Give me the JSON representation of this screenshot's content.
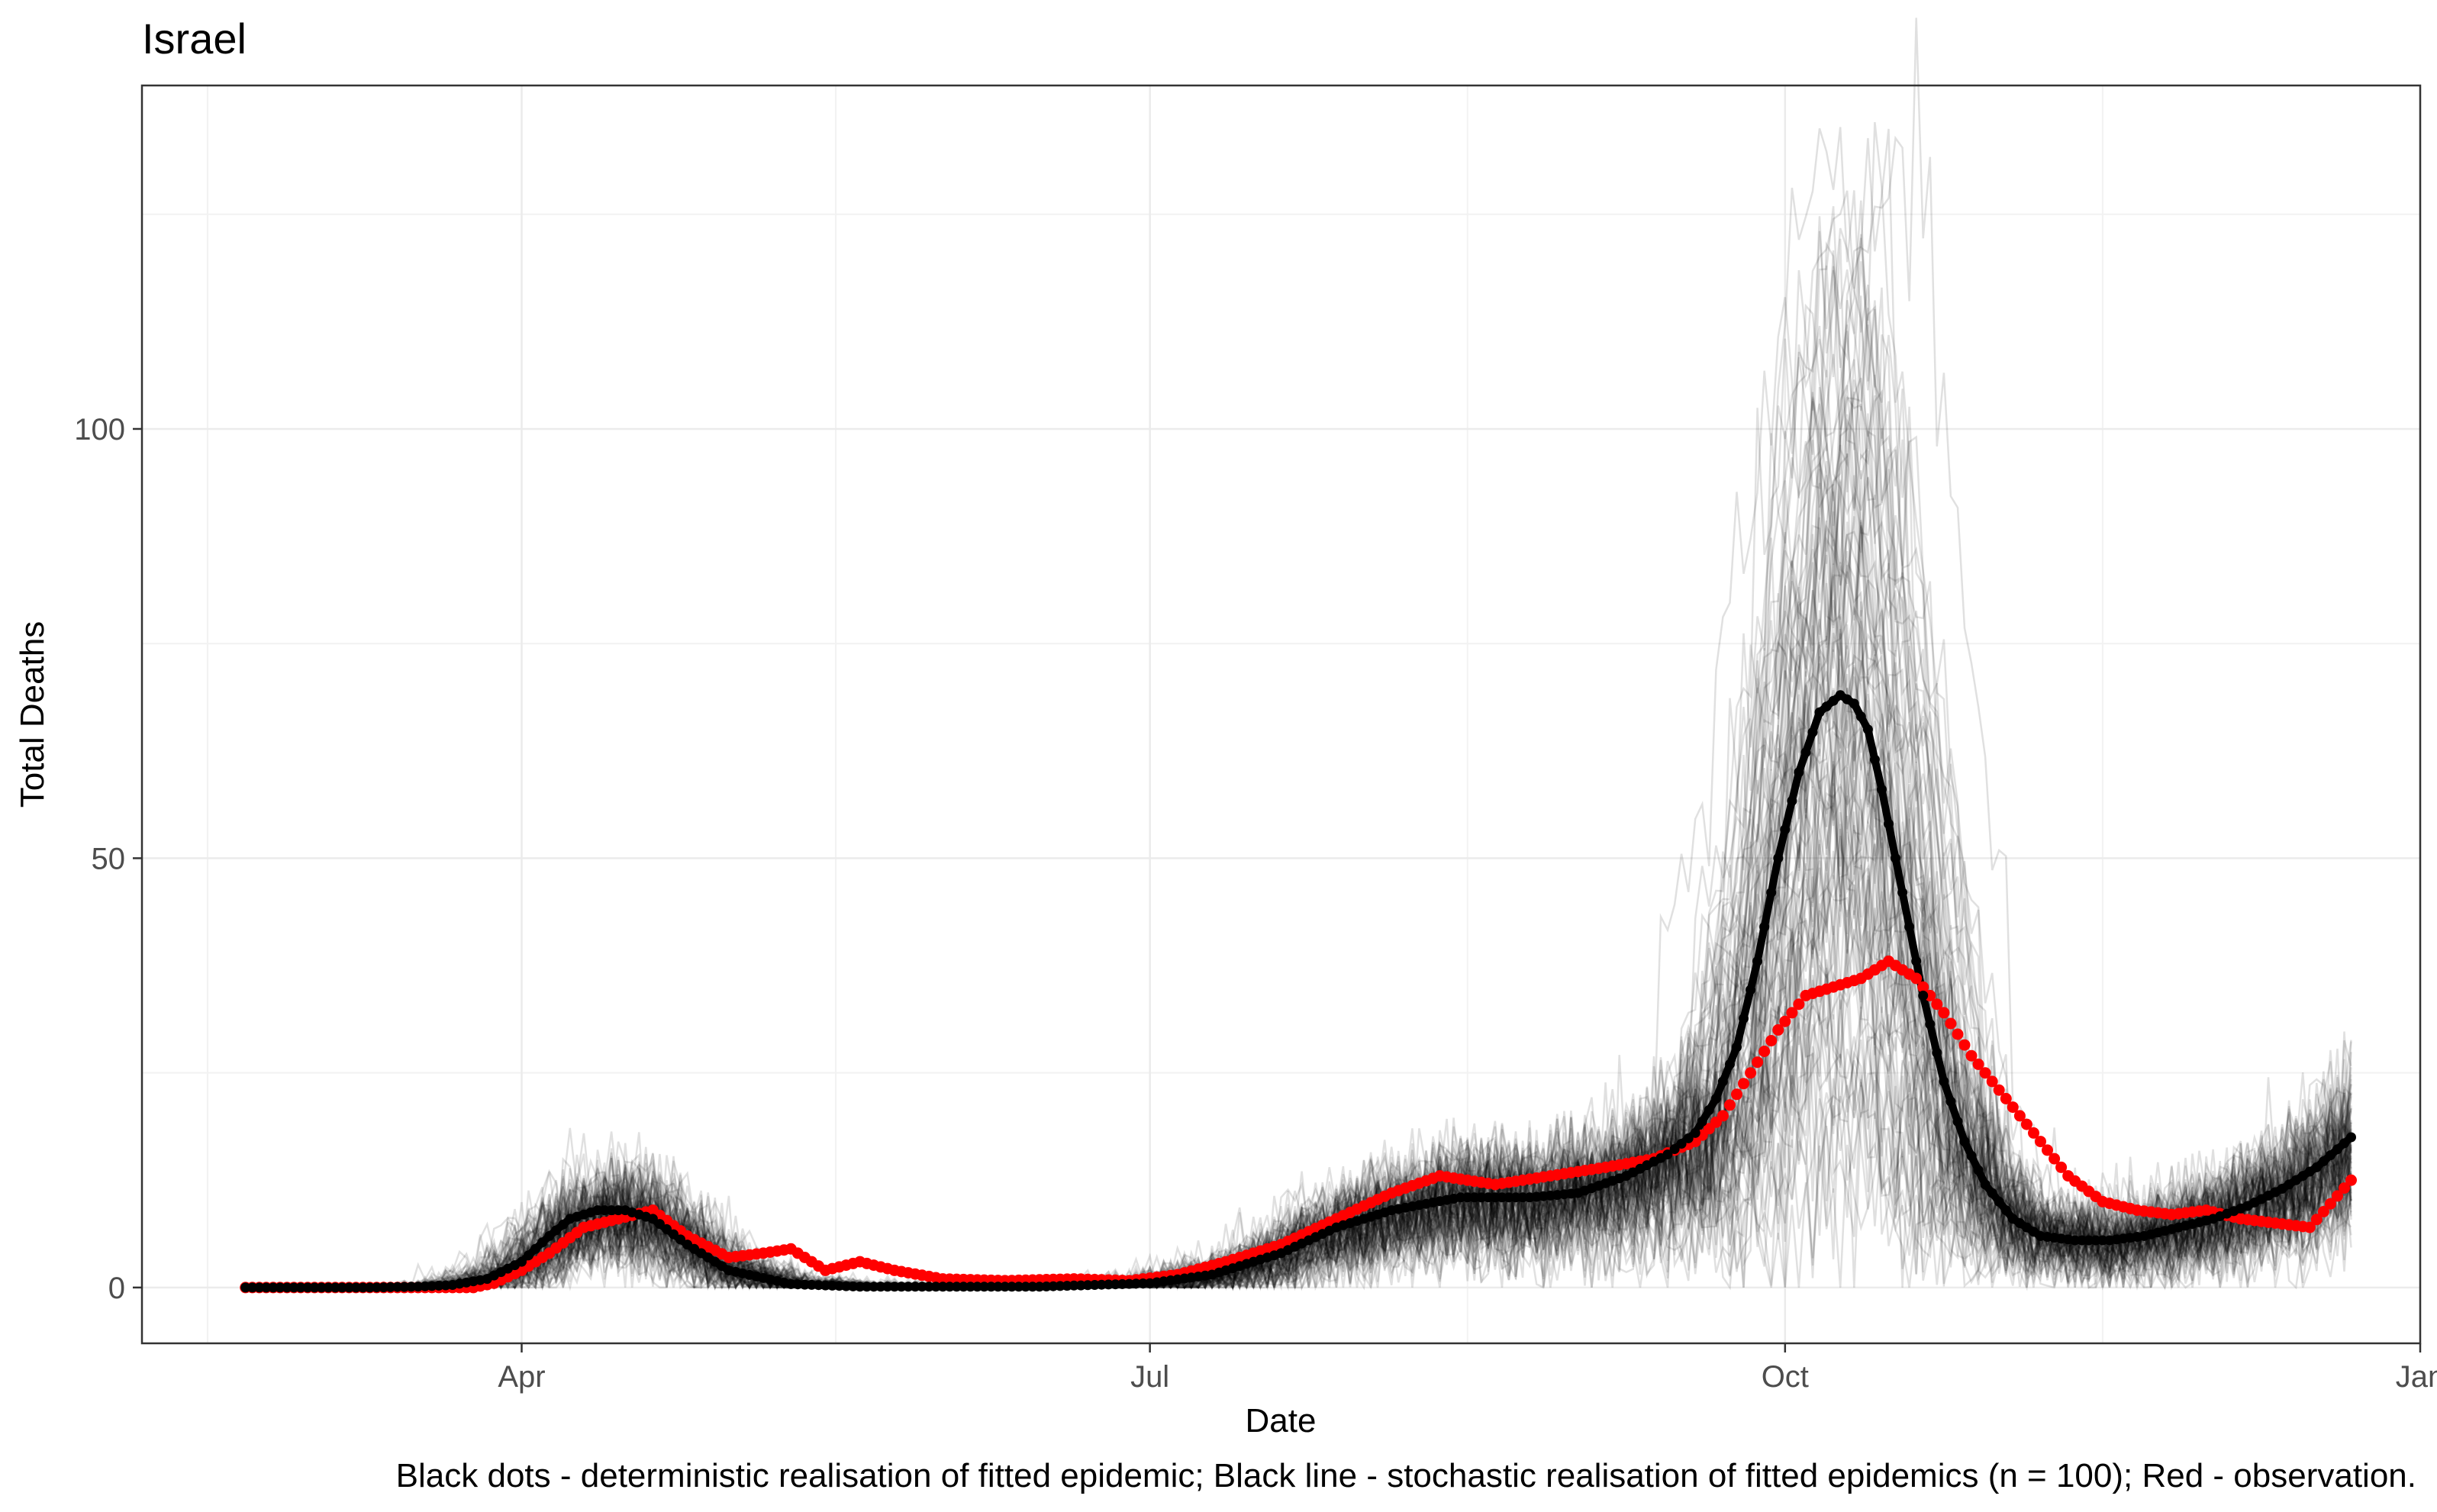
{
  "chart_data": {
    "type": "line",
    "title": "Israel",
    "xlabel": "Date",
    "ylabel": "Total Deaths",
    "caption": "Black dots - deterministic realisation of fitted epidemic; Black line - stochastic realisation of fitted epidemics (n = 100); Red - observation.",
    "x_ticks": [
      "Apr",
      "Jul",
      "Oct",
      "Jan"
    ],
    "x_tick_dates": [
      "2020-04-01",
      "2020-07-01",
      "2020-10-01",
      "2021-01-01"
    ],
    "xlim": [
      "2020-02-06",
      "2021-01-01"
    ],
    "y_ticks": [
      0,
      50,
      100
    ],
    "ylim": [
      -6.5,
      140
    ],
    "grid": true,
    "legend": "none",
    "colors": {
      "deterministic": "#000000",
      "stochastic_mean": "#000000",
      "stochastic_runs": "#000000",
      "observation": "#ff0000"
    },
    "series": [
      {
        "name": "Black dots - deterministic realisation of fitted epidemic",
        "style": "points",
        "dates": [
          "2020-02-21",
          "2020-03-01",
          "2020-03-10",
          "2020-03-17",
          "2020-03-22",
          "2020-03-27",
          "2020-04-01",
          "2020-04-05",
          "2020-04-08",
          "2020-04-12",
          "2020-04-16",
          "2020-04-20",
          "2020-04-25",
          "2020-05-01",
          "2020-05-10",
          "2020-05-20",
          "2020-06-01",
          "2020-06-15",
          "2020-07-01",
          "2020-07-10",
          "2020-07-20",
          "2020-07-28",
          "2020-08-05",
          "2020-08-15",
          "2020-08-25",
          "2020-09-01",
          "2020-09-08",
          "2020-09-14",
          "2020-09-18",
          "2020-09-21",
          "2020-09-24",
          "2020-09-27",
          "2020-09-30",
          "2020-10-03",
          "2020-10-06",
          "2020-10-09",
          "2020-10-11",
          "2020-10-13",
          "2020-10-15",
          "2020-10-18",
          "2020-10-21",
          "2020-10-24",
          "2020-10-27",
          "2020-10-30",
          "2020-11-03",
          "2020-11-07",
          "2020-11-12",
          "2020-11-17",
          "2020-11-22",
          "2020-11-27",
          "2020-12-02",
          "2020-12-07",
          "2020-12-12",
          "2020-12-17",
          "2020-12-22"
        ],
        "values": [
          0,
          0,
          0,
          0.1,
          0.3,
          1,
          3,
          6,
          8,
          9,
          9,
          8,
          5,
          2,
          0.4,
          0.1,
          0.1,
          0.1,
          0.5,
          1.5,
          4,
          7,
          9,
          10.5,
          10.5,
          11,
          13,
          15.5,
          18,
          22,
          28,
          38,
          50,
          60,
          67,
          69,
          68,
          65,
          58,
          46,
          34,
          24,
          17,
          12,
          8,
          6,
          5.5,
          5.5,
          6,
          7,
          8,
          9.5,
          11.5,
          14,
          17.5
        ]
      },
      {
        "name": "Black line - stochastic realisation of fitted epidemics (n = 100)",
        "style": "line",
        "dates": [
          "2020-02-21",
          "2020-03-01",
          "2020-03-10",
          "2020-03-17",
          "2020-03-22",
          "2020-03-27",
          "2020-04-01",
          "2020-04-05",
          "2020-04-08",
          "2020-04-12",
          "2020-04-16",
          "2020-04-20",
          "2020-04-25",
          "2020-05-01",
          "2020-05-10",
          "2020-05-20",
          "2020-06-01",
          "2020-06-15",
          "2020-07-01",
          "2020-07-10",
          "2020-07-20",
          "2020-07-28",
          "2020-08-05",
          "2020-08-15",
          "2020-08-25",
          "2020-09-01",
          "2020-09-08",
          "2020-09-14",
          "2020-09-18",
          "2020-09-21",
          "2020-09-24",
          "2020-09-27",
          "2020-09-30",
          "2020-10-03",
          "2020-10-06",
          "2020-10-09",
          "2020-10-11",
          "2020-10-13",
          "2020-10-15",
          "2020-10-18",
          "2020-10-21",
          "2020-10-24",
          "2020-10-27",
          "2020-10-30",
          "2020-11-03",
          "2020-11-07",
          "2020-11-12",
          "2020-11-17",
          "2020-11-22",
          "2020-11-27",
          "2020-12-02",
          "2020-12-07",
          "2020-12-12",
          "2020-12-17",
          "2020-12-22"
        ],
        "values": [
          0,
          0,
          0,
          0.1,
          0.3,
          1,
          3,
          6,
          8,
          9,
          9,
          8,
          5,
          2,
          0.4,
          0.1,
          0.1,
          0.1,
          0.5,
          1.5,
          4,
          7,
          9,
          10.5,
          10.5,
          11,
          13,
          15.5,
          18,
          22,
          28,
          38,
          50,
          60,
          67,
          69,
          68,
          65,
          58,
          46,
          34,
          24,
          17,
          12,
          8,
          6,
          5.5,
          5.5,
          6,
          7,
          8,
          9.5,
          11.5,
          14,
          17.5
        ]
      },
      {
        "name": "Red - observation",
        "style": "points",
        "dates": [
          "2020-02-21",
          "2020-03-01",
          "2020-03-15",
          "2020-03-20",
          "2020-03-25",
          "2020-03-28",
          "2020-04-01",
          "2020-04-05",
          "2020-04-10",
          "2020-04-15",
          "2020-04-20",
          "2020-04-25",
          "2020-05-01",
          "2020-05-06",
          "2020-05-10",
          "2020-05-15",
          "2020-05-20",
          "2020-05-25",
          "2020-06-01",
          "2020-06-10",
          "2020-06-20",
          "2020-06-28",
          "2020-07-05",
          "2020-07-12",
          "2020-07-20",
          "2020-07-28",
          "2020-08-05",
          "2020-08-12",
          "2020-08-20",
          "2020-08-28",
          "2020-09-05",
          "2020-09-12",
          "2020-09-18",
          "2020-09-22",
          "2020-09-26",
          "2020-09-30",
          "2020-10-04",
          "2020-10-08",
          "2020-10-12",
          "2020-10-16",
          "2020-10-20",
          "2020-10-24",
          "2020-10-28",
          "2020-11-01",
          "2020-11-06",
          "2020-11-11",
          "2020-11-16",
          "2020-11-21",
          "2020-11-26",
          "2020-12-01",
          "2020-12-06",
          "2020-12-11",
          "2020-12-16",
          "2020-12-22"
        ],
        "values": [
          0,
          0,
          0,
          0,
          0,
          0.5,
          2,
          4,
          7,
          8,
          9,
          6,
          3.5,
          4,
          4.5,
          2,
          3,
          2,
          1,
          0.8,
          1,
          0.8,
          1.5,
          3,
          5,
          8,
          11,
          13,
          12,
          13,
          14,
          15,
          17,
          20,
          25,
          30,
          34,
          35,
          36,
          38,
          36,
          32,
          27,
          23,
          18,
          13,
          10,
          9,
          8.5,
          9,
          8,
          7.5,
          7,
          12.5
        ]
      }
    ],
    "stochastic_runs": {
      "count": 100,
      "color": "#000000",
      "opacity": 0.12
    }
  }
}
